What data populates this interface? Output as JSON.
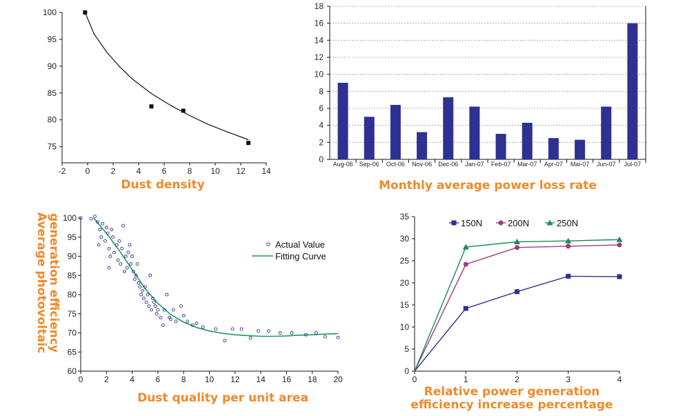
{
  "colors": {
    "bar": "#2e3192",
    "caption": "#f0892a",
    "fit": "#1a9a5a",
    "s150": "#2e3192",
    "s200": "#a03a7e",
    "s250": "#1a8a56"
  },
  "chart_data": [
    {
      "id": "dust-density",
      "type": "scatter",
      "title": "Dust density",
      "xlim": [
        -2,
        14
      ],
      "ylim": [
        72,
        100
      ],
      "xticks": [
        -2,
        0,
        2,
        4,
        6,
        8,
        10,
        12,
        14
      ],
      "yticks": [
        75,
        80,
        85,
        90,
        95,
        100
      ],
      "points": [
        [
          -0.2,
          100
        ],
        [
          5,
          82.5
        ],
        [
          7.5,
          81.7
        ],
        [
          12.6,
          75.7
        ]
      ],
      "fit_curve": [
        [
          -0.2,
          100
        ],
        [
          0.5,
          96
        ],
        [
          1.5,
          92.6
        ],
        [
          2.5,
          89.9
        ],
        [
          3.5,
          87.6
        ],
        [
          5,
          84.9
        ],
        [
          6.5,
          82.7
        ],
        [
          8,
          80.8
        ],
        [
          9.5,
          79.1
        ],
        [
          11,
          77.7
        ],
        [
          12.6,
          76.3
        ]
      ]
    },
    {
      "id": "monthly-loss",
      "type": "bar",
      "title": "Monthly average power loss rate",
      "categories": [
        "Aug-06",
        "Sep-06",
        "Oct-06",
        "Nov-06",
        "Dec-06",
        "Jan-07",
        "Feb-07",
        "Mar-07",
        "Apr-07",
        "Mai-07",
        "Jun-07",
        "Jul-07"
      ],
      "values": [
        9,
        5,
        6.4,
        3.2,
        7.3,
        6.2,
        3,
        4.3,
        2.5,
        2.3,
        6.2,
        16
      ],
      "ylim": [
        0,
        18
      ],
      "yticks": [
        0,
        2,
        4,
        6,
        8,
        10,
        12,
        14,
        16,
        18
      ]
    },
    {
      "id": "pv-efficiency",
      "type": "scatter",
      "title": "Dust quality per unit area",
      "ylabel": "Average photovoltaic generation efficiency",
      "xlim": [
        0,
        20
      ],
      "ylim": [
        60,
        100
      ],
      "xticks": [
        0,
        2,
        4,
        6,
        8,
        10,
        12,
        14,
        16,
        18,
        20
      ],
      "yticks": [
        60,
        65,
        70,
        75,
        80,
        85,
        90,
        95,
        100
      ],
      "legend": [
        "Actual Value",
        "Fitting Curve"
      ],
      "actual": [
        [
          0,
          100
        ],
        [
          0.8,
          99.8
        ],
        [
          1.1,
          100.4
        ],
        [
          1.3,
          99
        ],
        [
          1.5,
          97
        ],
        [
          1.6,
          95
        ],
        [
          1.7,
          98.5
        ],
        [
          1.4,
          93
        ],
        [
          1.9,
          94
        ],
        [
          2.0,
          97.5
        ],
        [
          2.1,
          96
        ],
        [
          2.2,
          92
        ],
        [
          2.3,
          90
        ],
        [
          2.4,
          97
        ],
        [
          2.5,
          95
        ],
        [
          2.6,
          91
        ],
        [
          2.2,
          87
        ],
        [
          2.8,
          93
        ],
        [
          2.9,
          89
        ],
        [
          3.0,
          94
        ],
        [
          3.1,
          88
        ],
        [
          3.2,
          92
        ],
        [
          3.3,
          98
        ],
        [
          3.4,
          86
        ],
        [
          3.5,
          90
        ],
        [
          3.6,
          87
        ],
        [
          3.7,
          91
        ],
        [
          3.8,
          93
        ],
        [
          3.9,
          88
        ],
        [
          4.0,
          90
        ],
        [
          4.1,
          86
        ],
        [
          4.2,
          84
        ],
        [
          4.3,
          85
        ],
        [
          4.4,
          88
        ],
        [
          4.5,
          83
        ],
        [
          4.6,
          82
        ],
        [
          4.7,
          80
        ],
        [
          4.8,
          81
        ],
        [
          4.9,
          79
        ],
        [
          5.0,
          82
        ],
        [
          5.1,
          78
        ],
        [
          5.2,
          80
        ],
        [
          5.3,
          77
        ],
        [
          5.4,
          85
        ],
        [
          5.5,
          76
        ],
        [
          5.6,
          79
        ],
        [
          5.7,
          78
        ],
        [
          5.8,
          77
        ],
        [
          5.9,
          75
        ],
        [
          6.0,
          76
        ],
        [
          6.2,
          74
        ],
        [
          6.4,
          72
        ],
        [
          6.5,
          76
        ],
        [
          6.7,
          80
        ],
        [
          6.9,
          74
        ],
        [
          7.0,
          73.5
        ],
        [
          7.2,
          76
        ],
        [
          7.4,
          73
        ],
        [
          7.8,
          77
        ],
        [
          8.0,
          74.5
        ],
        [
          8.3,
          73
        ],
        [
          8.7,
          72
        ],
        [
          9.0,
          72.5
        ],
        [
          9.5,
          71.5
        ],
        [
          10.5,
          71
        ],
        [
          11.2,
          68
        ],
        [
          11.8,
          71
        ],
        [
          12.5,
          71
        ],
        [
          13.2,
          68.7
        ],
        [
          13.8,
          70.5
        ],
        [
          14.6,
          70.5
        ],
        [
          15.5,
          70
        ],
        [
          16.4,
          70
        ],
        [
          17.5,
          69.5
        ],
        [
          18.3,
          70
        ],
        [
          19.0,
          69
        ],
        [
          20.0,
          68.8
        ]
      ],
      "fit_curve": [
        [
          1,
          100
        ],
        [
          2,
          96
        ],
        [
          3,
          91.5
        ],
        [
          4,
          86.5
        ],
        [
          5,
          81.6
        ],
        [
          6,
          77.7
        ],
        [
          7,
          74.8
        ],
        [
          8,
          72.8
        ],
        [
          9,
          71.4
        ],
        [
          10,
          70.5
        ],
        [
          11,
          69.9
        ],
        [
          12,
          69.5
        ],
        [
          13,
          69.3
        ],
        [
          14,
          69.1
        ],
        [
          15,
          69.1
        ],
        [
          16,
          69.2
        ],
        [
          17,
          69.4
        ],
        [
          18,
          69.5
        ],
        [
          19,
          69.7
        ],
        [
          20,
          69.8
        ]
      ]
    },
    {
      "id": "relative-gain",
      "type": "line",
      "title": "Relative power generation efficiency increase percentage",
      "x": [
        0,
        1,
        2,
        3,
        4
      ],
      "xlim": [
        0,
        4
      ],
      "ylim": [
        0,
        35
      ],
      "xticks": [
        0,
        1,
        2,
        3,
        4
      ],
      "yticks": [
        0,
        5,
        10,
        15,
        20,
        25,
        30,
        35
      ],
      "series": [
        {
          "name": "150N",
          "values": [
            0,
            14.2,
            18,
            21.5,
            21.4
          ]
        },
        {
          "name": "200N",
          "values": [
            0,
            24.2,
            28,
            28.3,
            28.6
          ]
        },
        {
          "name": "250N",
          "values": [
            0,
            28.1,
            29.3,
            29.5,
            29.8
          ]
        }
      ]
    }
  ],
  "captions": {
    "c1": "Dust density",
    "c2": "Monthly average power loss rate",
    "c3": "Dust quality per unit area",
    "c3_y1": "Average photovoltaic",
    "c3_y2": "generation efficiency",
    "c4_l1": "Relative power generation",
    "c4_l2": "efficiency increase percentage"
  }
}
